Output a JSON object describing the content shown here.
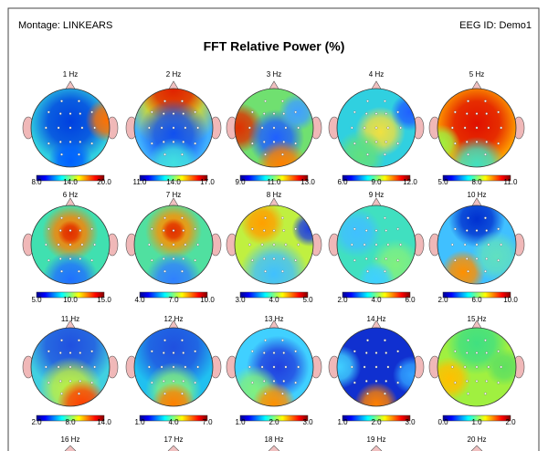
{
  "header": {
    "montage": "Montage:  LINKEARS",
    "eeg_id": "EEG ID:  Demo1",
    "title": "FFT Relative Power  (%)"
  },
  "maps": [
    {
      "label": "1 Hz",
      "scale": [
        "8.0",
        "14.0",
        "20.0"
      ]
    },
    {
      "label": "2 Hz",
      "scale": [
        "11.0",
        "14.0",
        "17.0"
      ]
    },
    {
      "label": "3 Hz",
      "scale": [
        "9.0",
        "11.0",
        "13.0"
      ]
    },
    {
      "label": "4 Hz",
      "scale": [
        "6.0",
        "9.0",
        "12.0"
      ]
    },
    {
      "label": "5 Hz",
      "scale": [
        "5.0",
        "8.0",
        "11.0"
      ]
    },
    {
      "label": "6 Hz",
      "scale": [
        "5.0",
        "10.0",
        "15.0"
      ]
    },
    {
      "label": "7 Hz",
      "scale": [
        "4.0",
        "7.0",
        "10.0"
      ]
    },
    {
      "label": "8 Hz",
      "scale": [
        "3.0",
        "4.0",
        "5.0"
      ]
    },
    {
      "label": "9 Hz",
      "scale": [
        "2.0",
        "4.0",
        "6.0"
      ]
    },
    {
      "label": "10 Hz",
      "scale": [
        "2.0",
        "6.0",
        "10.0"
      ]
    },
    {
      "label": "11 Hz",
      "scale": [
        "2.0",
        "8.0",
        "14.0"
      ]
    },
    {
      "label": "12 Hz",
      "scale": [
        "1.0",
        "4.0",
        "7.0"
      ]
    },
    {
      "label": "13 Hz",
      "scale": [
        "1.0",
        "2.0",
        "3.0"
      ]
    },
    {
      "label": "14 Hz",
      "scale": [
        "1.0",
        "2.0",
        "3.0"
      ]
    },
    {
      "label": "15 Hz",
      "scale": [
        "0.0",
        "1.0",
        "2.0"
      ]
    }
  ],
  "next_row": [
    "16 Hz",
    "17 Hz",
    "18 Hz",
    "19 Hz",
    "20 Hz"
  ]
}
